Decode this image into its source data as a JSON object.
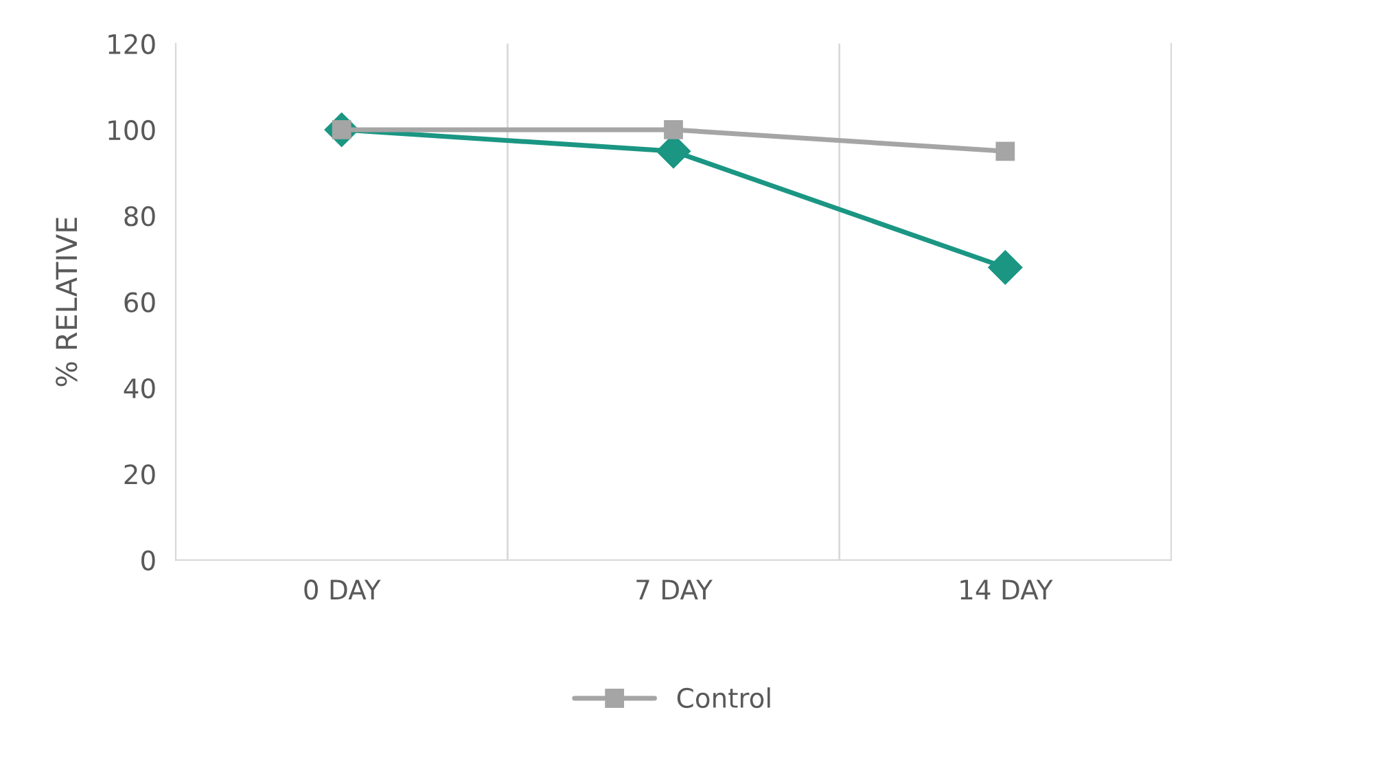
{
  "chart_data": {
    "type": "line",
    "ylabel": "% RELATIVE",
    "categories": [
      "0 DAY",
      "7 DAY",
      "14 DAY"
    ],
    "series": [
      {
        "color": "#1a9683",
        "values": [
          100,
          95,
          68
        ],
        "marker": "diamond"
      },
      {
        "name": "Control",
        "color": "#a5a5a5",
        "values": [
          100,
          100,
          95
        ],
        "marker": "square"
      }
    ],
    "ylim": [
      0,
      120
    ],
    "yticks": [
      0,
      20,
      40,
      60,
      80,
      100,
      120
    ],
    "grid": "x",
    "legend": "bottom",
    "line_style": "solid"
  }
}
